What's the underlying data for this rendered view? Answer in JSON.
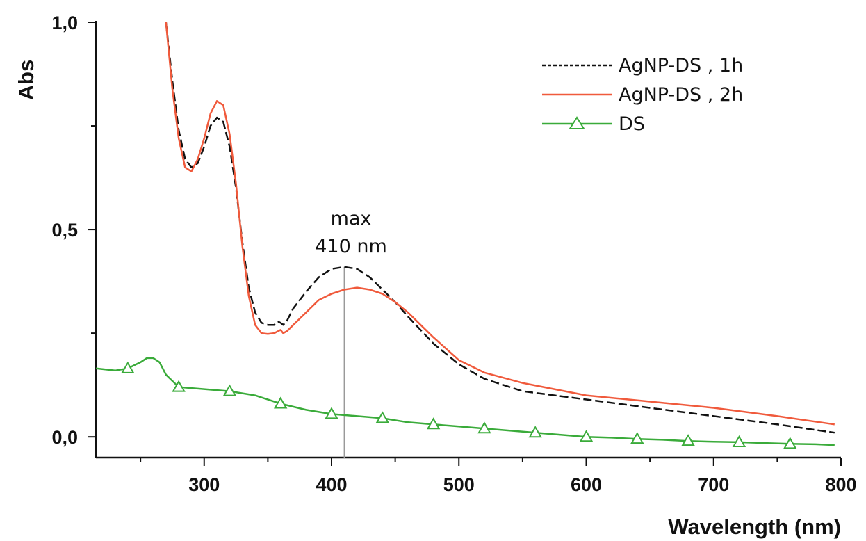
{
  "chart_data": {
    "type": "line",
    "title": "",
    "xlabel": "Wavelength (nm)",
    "ylabel": "Abs",
    "xlim": [
      215,
      800
    ],
    "ylim": [
      -0.05,
      1.0
    ],
    "x_ticks": [
      300,
      400,
      500,
      600,
      700,
      800
    ],
    "x_tick_labels": [
      "300",
      "400",
      "500",
      "600",
      "700",
      "800"
    ],
    "y_ticks": [
      0.0,
      0.5,
      1.0
    ],
    "y_tick_labels": [
      "0,0",
      "0,5",
      "1,0"
    ],
    "grid": false,
    "legend_position": "top-right",
    "annotation": {
      "line1": "max",
      "line2": "410 nm",
      "x": 410
    },
    "series": [
      {
        "name": "AgNP-DS , 1h",
        "color": "#111111",
        "style": "dashed",
        "marker": "none",
        "x": [
          270,
          275,
          280,
          285,
          290,
          295,
          300,
          305,
          310,
          315,
          320,
          325,
          330,
          335,
          340,
          345,
          350,
          355,
          358,
          360,
          362,
          365,
          370,
          380,
          390,
          400,
          410,
          420,
          430,
          440,
          450,
          460,
          480,
          500,
          520,
          550,
          600,
          650,
          700,
          750,
          795
        ],
        "y": [
          1.0,
          0.86,
          0.74,
          0.67,
          0.65,
          0.66,
          0.7,
          0.75,
          0.77,
          0.76,
          0.7,
          0.6,
          0.47,
          0.36,
          0.3,
          0.275,
          0.27,
          0.27,
          0.278,
          0.275,
          0.27,
          0.28,
          0.31,
          0.35,
          0.385,
          0.405,
          0.41,
          0.405,
          0.385,
          0.355,
          0.325,
          0.29,
          0.225,
          0.175,
          0.14,
          0.11,
          0.09,
          0.07,
          0.05,
          0.03,
          0.01
        ]
      },
      {
        "name": "AgNP-DS , 2h",
        "color": "#f05a3c",
        "style": "solid",
        "marker": "none",
        "x": [
          270,
          275,
          280,
          285,
          290,
          295,
          300,
          305,
          310,
          315,
          320,
          325,
          330,
          335,
          340,
          345,
          350,
          355,
          360,
          362,
          365,
          370,
          380,
          390,
          400,
          410,
          420,
          430,
          440,
          450,
          460,
          480,
          500,
          520,
          550,
          600,
          650,
          700,
          750,
          795
        ],
        "y": [
          1.0,
          0.84,
          0.72,
          0.65,
          0.64,
          0.67,
          0.72,
          0.78,
          0.81,
          0.8,
          0.73,
          0.61,
          0.46,
          0.34,
          0.27,
          0.25,
          0.248,
          0.25,
          0.258,
          0.25,
          0.255,
          0.27,
          0.3,
          0.33,
          0.345,
          0.355,
          0.36,
          0.355,
          0.345,
          0.325,
          0.3,
          0.24,
          0.185,
          0.155,
          0.13,
          0.1,
          0.085,
          0.07,
          0.05,
          0.03
        ]
      },
      {
        "name": "DS",
        "color": "#3aab3a",
        "style": "solid",
        "marker": "triangle",
        "x": [
          215,
          230,
          240,
          250,
          255,
          260,
          265,
          270,
          280,
          300,
          320,
          340,
          360,
          380,
          400,
          420,
          440,
          460,
          480,
          500,
          520,
          540,
          560,
          580,
          600,
          620,
          640,
          660,
          680,
          700,
          720,
          740,
          760,
          780,
          795
        ],
        "y": [
          0.165,
          0.16,
          0.165,
          0.18,
          0.19,
          0.19,
          0.18,
          0.15,
          0.12,
          0.115,
          0.11,
          0.1,
          0.08,
          0.065,
          0.055,
          0.05,
          0.045,
          0.035,
          0.03,
          0.025,
          0.02,
          0.015,
          0.01,
          0.005,
          0.0,
          -0.002,
          -0.005,
          -0.007,
          -0.01,
          -0.012,
          -0.013,
          -0.015,
          -0.017,
          -0.018,
          -0.02
        ],
        "marker_x": [
          240,
          280,
          320,
          360,
          400,
          440,
          480,
          520,
          560,
          600,
          640,
          680,
          720,
          760
        ]
      }
    ]
  }
}
